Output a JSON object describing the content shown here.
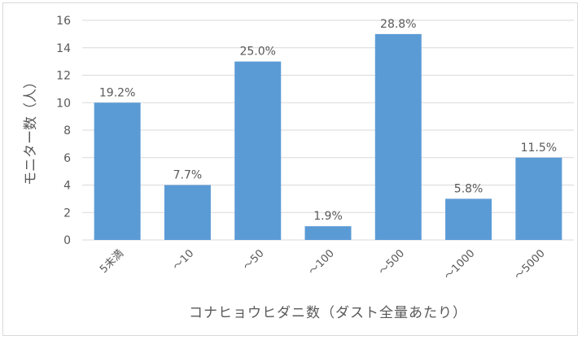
{
  "chart_data": {
    "type": "bar",
    "categories": [
      "5未満",
      "～10",
      "～50",
      "～100",
      "～500",
      "～1000",
      "～5000"
    ],
    "values": [
      10,
      4,
      13,
      1,
      15,
      3,
      6
    ],
    "data_labels": [
      "19.2%",
      "7.7%",
      "25.0%",
      "1.9%",
      "28.8%",
      "5.8%",
      "11.5%"
    ],
    "title": "",
    "xlabel": "コナヒョウヒダニ数（ダスト全量あたり）",
    "ylabel": "モニター数（人）",
    "ylim": [
      0,
      16
    ],
    "yticks": [
      0,
      2,
      4,
      6,
      8,
      10,
      12,
      14,
      16
    ],
    "grid": true,
    "bar_color": "#5b9bd5",
    "grid_color": "#d9d9d9"
  }
}
